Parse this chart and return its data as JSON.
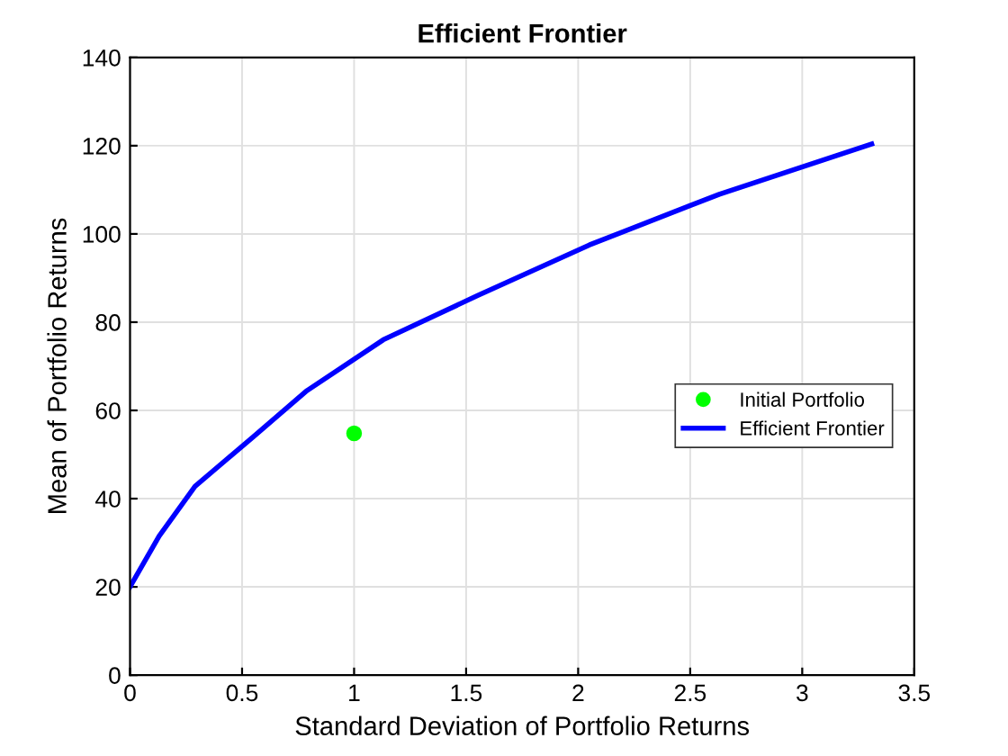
{
  "chart_data": {
    "type": "line",
    "title": "Efficient Frontier",
    "xlabel": "Standard Deviation of Portfolio Returns",
    "ylabel": "Mean of Portfolio Returns",
    "series": [
      {
        "name": "Initial Portfolio",
        "type": "scatter",
        "color": "#00ff00",
        "marker": "circle",
        "x": [
          1.0
        ],
        "values": [
          54.8
        ]
      },
      {
        "name": "Efficient Frontier",
        "color": "#0000ff",
        "line_style": "solid",
        "x": [
          0,
          0.13,
          0.29,
          0.55,
          0.79,
          1.13,
          1.55,
          2.05,
          2.63,
          3.31
        ],
        "values": [
          20,
          31.5,
          42.8,
          54,
          64.5,
          76,
          86,
          97.5,
          109,
          120.4
        ]
      }
    ],
    "xlim": [
      0,
      3.5
    ],
    "xticks": [
      0,
      0.5,
      1,
      1.5,
      2,
      2.5,
      3,
      3.5
    ],
    "ylim": [
      0,
      140
    ],
    "yticks": [
      0,
      20,
      40,
      60,
      80,
      100,
      120,
      140
    ],
    "grid": true,
    "legend": "right"
  }
}
